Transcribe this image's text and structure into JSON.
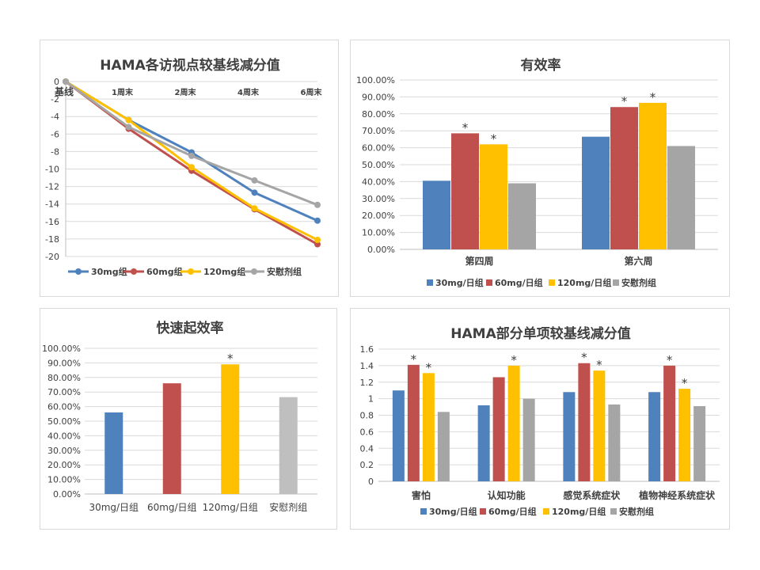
{
  "chart_data": [
    {
      "type": "line",
      "title": "HAMA各访视点较基线减分值",
      "categories": [
        "基线",
        "1周末",
        "2周末",
        "4周末",
        "6周末"
      ],
      "ylim": [
        -20,
        0
      ],
      "yticks": [
        "0",
        "-2",
        "-4",
        "-6",
        "-8",
        "-10",
        "-12",
        "-14",
        "-16",
        "-18",
        "-20"
      ],
      "grid": true,
      "legend": "bottom",
      "series": [
        {
          "name": "30mg组",
          "color": "#4f81bd",
          "values": [
            0,
            -4.4,
            -8.1,
            -12.7,
            -15.9
          ]
        },
        {
          "name": "60mg组",
          "color": "#c0504d",
          "values": [
            0,
            -5.4,
            -10.2,
            -14.6,
            -18.6
          ]
        },
        {
          "name": "120mg组",
          "color": "#ffc000",
          "values": [
            0,
            -4.4,
            -9.8,
            -14.5,
            -18.1
          ]
        },
        {
          "name": "安慰剂组",
          "color": "#a5a5a5",
          "values": [
            0,
            -5.2,
            -8.5,
            -11.3,
            -14.1
          ]
        }
      ]
    },
    {
      "type": "bar",
      "title": "有效率",
      "categories": [
        "第四周",
        "第六周"
      ],
      "ylim": [
        0,
        100
      ],
      "yticks": [
        "0.00%",
        "10.00%",
        "20.00%",
        "30.00%",
        "40.00%",
        "50.00%",
        "60.00%",
        "70.00%",
        "80.00%",
        "90.00%",
        "100.00%"
      ],
      "grid": true,
      "legend": "bottom",
      "series": [
        {
          "name": "30mg/日组",
          "color": "#4f81bd",
          "values": [
            40.5,
            66.5
          ],
          "marks": [
            "",
            ""
          ]
        },
        {
          "name": "60mg/日组",
          "color": "#c0504d",
          "values": [
            68.5,
            84.0
          ],
          "marks": [
            "*",
            "*"
          ]
        },
        {
          "name": "120mg/日组",
          "color": "#ffc000",
          "values": [
            62.0,
            86.5
          ],
          "marks": [
            "*",
            "*"
          ]
        },
        {
          "name": "安慰剂组",
          "color": "#a5a5a5",
          "values": [
            39.0,
            61.0
          ],
          "marks": [
            "",
            ""
          ]
        }
      ]
    },
    {
      "type": "bar",
      "title": "快速起效率",
      "categories": [
        "30mg/日组",
        "60mg/日组",
        "120mg/日组",
        "安慰剂组"
      ],
      "ylim": [
        0,
        100
      ],
      "yticks": [
        "0.00%",
        "10.00%",
        "20.00%",
        "30.00%",
        "40.00%",
        "50.00%",
        "60.00%",
        "70.00%",
        "80.00%",
        "90.00%",
        "100.00%"
      ],
      "grid": true,
      "values": [
        56.0,
        76.0,
        89.0,
        66.5
      ],
      "colors": [
        "#4f81bd",
        "#c0504d",
        "#ffc000",
        "#bfbfbf"
      ],
      "marks": [
        "",
        "",
        "*",
        ""
      ]
    },
    {
      "type": "bar",
      "title": "HAMA部分单项较基线减分值",
      "categories": [
        "害怕",
        "认知功能",
        "感觉系统症状",
        "植物神经系统症状"
      ],
      "ylim": [
        0,
        1.6
      ],
      "yticks": [
        "0",
        "0.2",
        "0.4",
        "0.6",
        "0.8",
        "1",
        "1.2",
        "1.4",
        "1.6"
      ],
      "grid": true,
      "legend": "bottom",
      "series": [
        {
          "name": "30mg/日组",
          "color": "#4f81bd",
          "values": [
            1.1,
            0.92,
            1.08,
            1.08
          ],
          "marks": [
            "",
            "",
            "",
            ""
          ]
        },
        {
          "name": "60mg/日组",
          "color": "#c0504d",
          "values": [
            1.41,
            1.26,
            1.43,
            1.4
          ],
          "marks": [
            "*",
            "",
            "*",
            "*"
          ]
        },
        {
          "name": "120mg/日组",
          "color": "#ffc000",
          "values": [
            1.31,
            1.4,
            1.34,
            1.12
          ],
          "marks": [
            "*",
            "*",
            "*",
            "*"
          ]
        },
        {
          "name": "安慰剂组",
          "color": "#a5a5a5",
          "values": [
            0.84,
            1.0,
            0.93,
            0.91
          ],
          "marks": [
            "",
            "",
            "",
            ""
          ]
        }
      ]
    }
  ]
}
